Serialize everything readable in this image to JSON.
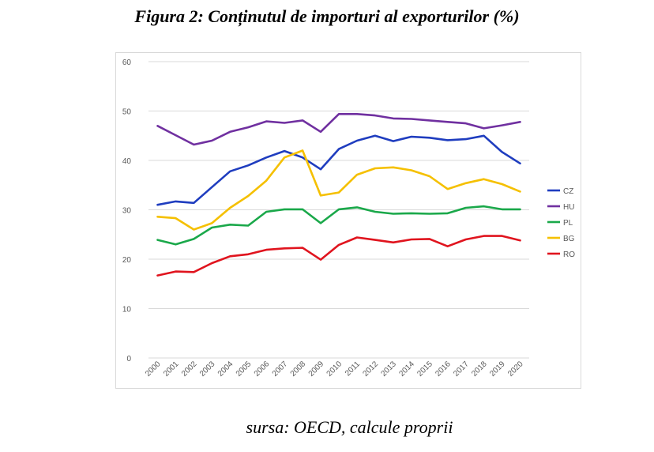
{
  "title": "Figura 2: Conținutul de importuri al exporturilor (%)",
  "source": "sursa: OECD, calcule proprii",
  "chart_data": {
    "type": "line",
    "title": "",
    "xlabel": "",
    "ylabel": "",
    "ylim": [
      0,
      60
    ],
    "yticks": [
      "0",
      "10",
      "20",
      "30",
      "40",
      "50",
      "60"
    ],
    "grid": true,
    "legend_position": "right",
    "categories": [
      "2000",
      "2001",
      "2002",
      "2003",
      "2004",
      "2005",
      "2006",
      "2007",
      "2008",
      "2009",
      "2010",
      "2011",
      "2012",
      "2013",
      "2014",
      "2015",
      "2016",
      "2017",
      "2018",
      "2019",
      "2020"
    ],
    "series": [
      {
        "name": "CZ",
        "color": "#1f3dbf",
        "values": [
          31.0,
          31.7,
          31.4,
          34.6,
          37.8,
          39.0,
          40.6,
          41.9,
          40.6,
          38.2,
          42.3,
          44.0,
          45.0,
          43.9,
          44.8,
          44.6,
          44.1,
          44.3,
          45.0,
          41.7,
          39.4
        ]
      },
      {
        "name": "HU",
        "color": "#7030a0",
        "values": [
          47.0,
          45.1,
          43.2,
          44.0,
          45.8,
          46.7,
          47.9,
          47.6,
          48.1,
          45.8,
          49.4,
          49.4,
          49.1,
          48.5,
          48.4,
          48.1,
          47.8,
          47.5,
          46.5,
          47.1,
          47.8
        ]
      },
      {
        "name": "PL",
        "color": "#1aa84a",
        "values": [
          23.9,
          23.0,
          24.1,
          26.4,
          27.0,
          26.8,
          29.6,
          30.1,
          30.1,
          27.3,
          30.1,
          30.5,
          29.6,
          29.2,
          29.3,
          29.2,
          29.3,
          30.4,
          30.7,
          30.1,
          30.1
        ]
      },
      {
        "name": "BG",
        "color": "#f5c000",
        "values": [
          28.6,
          28.3,
          26.0,
          27.3,
          30.4,
          32.8,
          35.9,
          40.6,
          42.0,
          32.9,
          33.5,
          37.1,
          38.4,
          38.6,
          38.0,
          36.8,
          34.2,
          35.4,
          36.2,
          35.2,
          33.7
        ]
      },
      {
        "name": "RO",
        "color": "#e0141e",
        "values": [
          16.7,
          17.5,
          17.4,
          19.2,
          20.6,
          21.0,
          21.9,
          22.2,
          22.3,
          19.9,
          22.9,
          24.4,
          23.9,
          23.4,
          24.0,
          24.1,
          22.6,
          24.0,
          24.7,
          24.7,
          23.8
        ]
      }
    ]
  }
}
